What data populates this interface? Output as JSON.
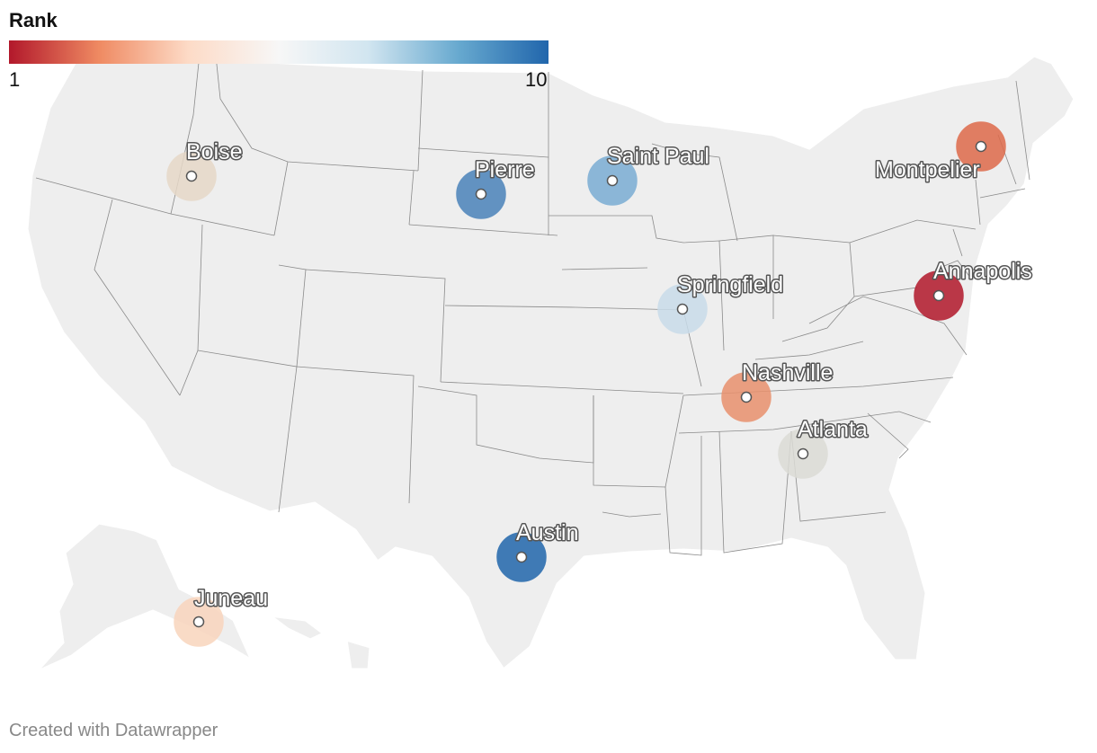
{
  "legend": {
    "title": "Rank",
    "min_label": "1",
    "max_label": "10",
    "colors": [
      "#b2182b",
      "#ef8a62",
      "#fddbc7",
      "#f7f7f7",
      "#d1e5f0",
      "#67a9cf",
      "#2166ac"
    ]
  },
  "cities": [
    {
      "name": "Boise",
      "color": "#e6d8c8"
    },
    {
      "name": "Pierre",
      "color": "#4a82ba"
    },
    {
      "name": "Saint Paul",
      "color": "#7aadd3"
    },
    {
      "name": "Montpelier",
      "color": "#de6a4a"
    },
    {
      "name": "Annapolis",
      "color": "#b2182b"
    },
    {
      "name": "Springfield",
      "color": "#c9dcea"
    },
    {
      "name": "Nashville",
      "color": "#e9916d"
    },
    {
      "name": "Atlanta",
      "color": "#dcdcd6"
    },
    {
      "name": "Austin",
      "color": "#2166ac"
    },
    {
      "name": "Juneau",
      "color": "#f9d5bd"
    }
  ],
  "credit": "Created with Datawrapper"
}
